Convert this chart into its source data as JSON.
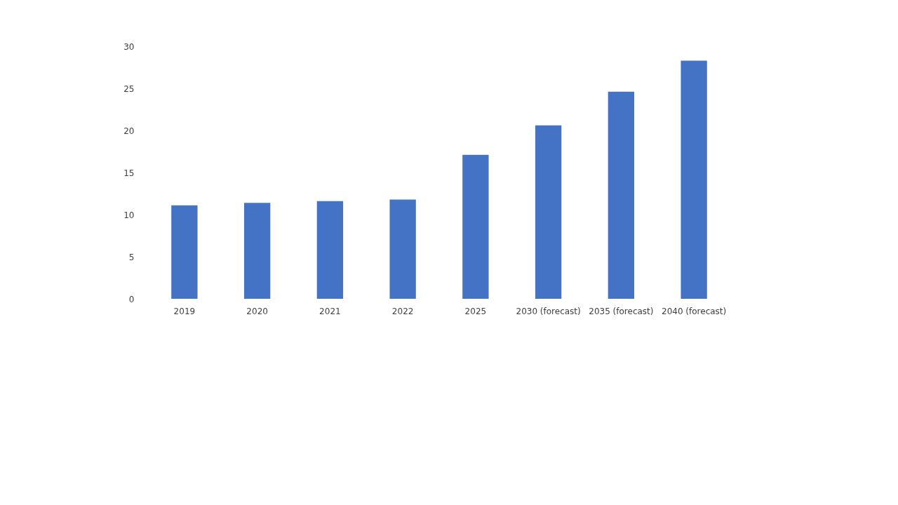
{
  "chart_data": {
    "type": "bar",
    "categories": [
      "2019",
      "2020",
      "2021",
      "2022",
      "2025",
      "2030 (forecast)",
      "2035 (forecast)",
      "2040 (forecast)"
    ],
    "values": [
      11.1,
      11.4,
      11.6,
      11.8,
      17.1,
      20.6,
      24.6,
      28.3
    ],
    "color": "#4472c4",
    "ylim": [
      0,
      30
    ],
    "yticks": [
      0,
      5,
      10,
      15,
      20,
      25,
      30
    ],
    "grid": false
  }
}
